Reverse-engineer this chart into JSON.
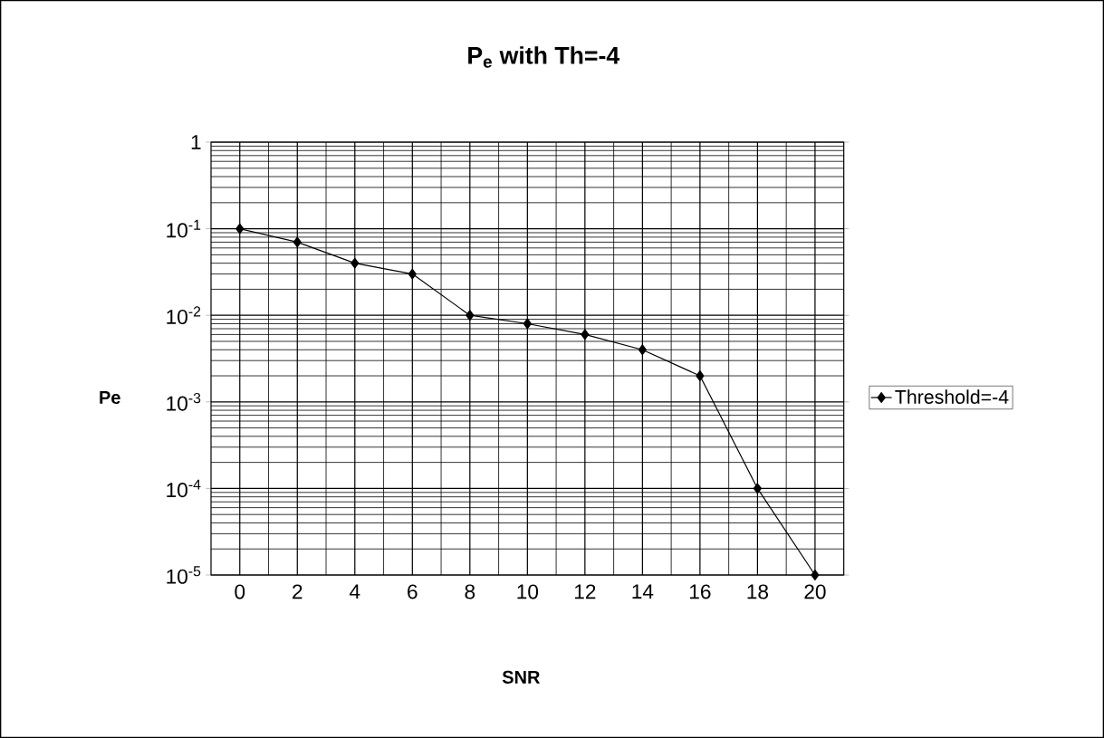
{
  "chart_data": {
    "type": "line",
    "title": "P$_{e}$ with Th=-4",
    "xlabel": "SNR",
    "ylabel": "Pe",
    "categories": [
      "0",
      "2",
      "4",
      "6",
      "8",
      "10",
      "12",
      "14",
      "16",
      "18",
      "20"
    ],
    "series": [
      {
        "name": "Threshold=-4",
        "color": "#000000",
        "values": [
          0.1,
          0.07,
          0.04,
          0.03,
          0.01,
          0.008,
          0.006,
          0.004,
          0.002,
          0.0001,
          1e-05
        ]
      }
    ],
    "log": "y",
    "ylim": [
      1e-05,
      1
    ],
    "yticks": [
      {
        "value": 1e-05,
        "label": "10$^{-5}$"
      },
      {
        "value": 0.0001,
        "label": "10$^{-4}$"
      },
      {
        "value": 0.001,
        "label": "10$^{-3}$"
      },
      {
        "value": 0.01,
        "label": "10$^{-2}$"
      },
      {
        "value": 0.1,
        "label": "10$^{-1}$"
      },
      1
    ],
    "grid": true,
    "legend": "right",
    "marker": "diamond",
    "line_style": "solid"
  }
}
